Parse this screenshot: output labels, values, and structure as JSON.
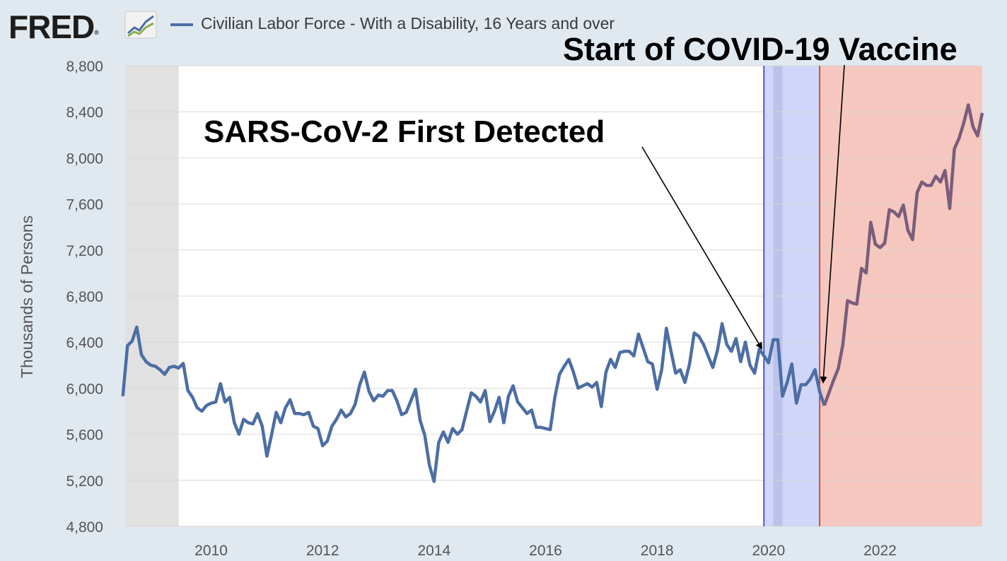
{
  "header": {
    "logo_text": "FRED",
    "logo_registered": "®",
    "logo_icon": "line-chart-icon",
    "legend_label": "Civilian Labor Force - With a Disability, 16 Years and over"
  },
  "annotations": {
    "vaccine": "Start of COVID-19 Vaccine",
    "sars": "SARS-CoV-2 First Detected"
  },
  "colors": {
    "series": "#4c6ea4",
    "series_late": "#7a5d7c",
    "recession_shade": "#e1e1e1",
    "sars_shade": "#d0d6f9",
    "sars_shade_dark": "#bcc2ea",
    "sars_line": "#1f2fc4",
    "vaccine_shade": "#f5c7be",
    "vaccine_line": "#c02a1c",
    "grid": "#d8d8d8",
    "axis_text": "#555555"
  },
  "chart_data": {
    "type": "line",
    "title": "Civilian Labor Force - With a Disability, 16 Years and over",
    "xlabel": "",
    "ylabel": "Thousands of Persons",
    "ylim": [
      4800,
      8800
    ],
    "xlim": [
      2008.4583,
      2023.8333
    ],
    "yticks": [
      4800,
      5200,
      5600,
      6000,
      6400,
      6800,
      7200,
      7600,
      8000,
      8400,
      8800
    ],
    "ytick_labels": [
      "4,800",
      "5,200",
      "5,600",
      "6,000",
      "6,400",
      "6,800",
      "7,200",
      "7,600",
      "8,000",
      "8,400",
      "8,800"
    ],
    "xticks": [
      2010,
      2012,
      2014,
      2016,
      2018,
      2020,
      2022
    ],
    "xtick_labels": [
      "2010",
      "2012",
      "2014",
      "2016",
      "2018",
      "2020",
      "2022"
    ],
    "grid": true,
    "legend": "top-left",
    "shaded_ranges": [
      {
        "kind": "recession",
        "x0": 2008.4583,
        "x1": 2009.4167
      },
      {
        "kind": "sars",
        "x0": 2019.9167,
        "x1": 2020.9167
      },
      {
        "kind": "sars_dark",
        "x0": 2020.0833,
        "x1": 2020.25
      },
      {
        "kind": "vaccine",
        "x0": 2020.9167,
        "x1": 2023.8333
      }
    ],
    "vertical_lines": [
      {
        "kind": "sars",
        "x": 2019.9167
      },
      {
        "kind": "vaccine",
        "x": 2020.9167
      }
    ],
    "series": [
      {
        "name": "Civilian Labor Force - With a Disability, 16 Years and over",
        "start": "2008-06",
        "frequency": "monthly",
        "values": [
          5930,
          6370,
          6410,
          6530,
          6290,
          6230,
          6200,
          6190,
          6160,
          6120,
          6180,
          6190,
          6175,
          6215,
          5980,
          5920,
          5830,
          5800,
          5850,
          5870,
          5880,
          6040,
          5880,
          5920,
          5700,
          5600,
          5730,
          5700,
          5690,
          5780,
          5670,
          5410,
          5590,
          5790,
          5700,
          5830,
          5900,
          5780,
          5780,
          5770,
          5790,
          5670,
          5650,
          5500,
          5540,
          5670,
          5730,
          5810,
          5750,
          5780,
          5860,
          6030,
          6140,
          5970,
          5890,
          5940,
          5930,
          5980,
          5980,
          5890,
          5770,
          5790,
          5890,
          5990,
          5720,
          5590,
          5330,
          5190,
          5530,
          5620,
          5530,
          5650,
          5600,
          5640,
          5800,
          5960,
          5930,
          5880,
          5980,
          5710,
          5800,
          5920,
          5700,
          5930,
          6020,
          5880,
          5830,
          5780,
          5810,
          5660,
          5660,
          5650,
          5640,
          5920,
          6120,
          6190,
          6250,
          6140,
          6000,
          6020,
          6040,
          6010,
          6050,
          5840,
          6140,
          6250,
          6180,
          6310,
          6320,
          6320,
          6280,
          6470,
          6350,
          6230,
          6210,
          5990,
          6160,
          6520,
          6320,
          6130,
          6160,
          6050,
          6210,
          6480,
          6450,
          6380,
          6280,
          6180,
          6330,
          6560,
          6380,
          6320,
          6430,
          6230,
          6400,
          6200,
          6130,
          6340,
          6280,
          6220,
          6420,
          6420,
          5930,
          6050,
          6210,
          5870,
          6030,
          6030,
          6080,
          6160,
          5970,
          5850,
          5960,
          6070,
          6170,
          6380,
          6760,
          6740,
          6730,
          7040,
          7000,
          7440,
          7250,
          7220,
          7260,
          7550,
          7530,
          7490,
          7590,
          7370,
          7290,
          7700,
          7790,
          7760,
          7760,
          7840,
          7790,
          7890,
          7560,
          8080,
          8170,
          8300,
          8460,
          8270,
          8190,
          8390
        ]
      }
    ]
  }
}
